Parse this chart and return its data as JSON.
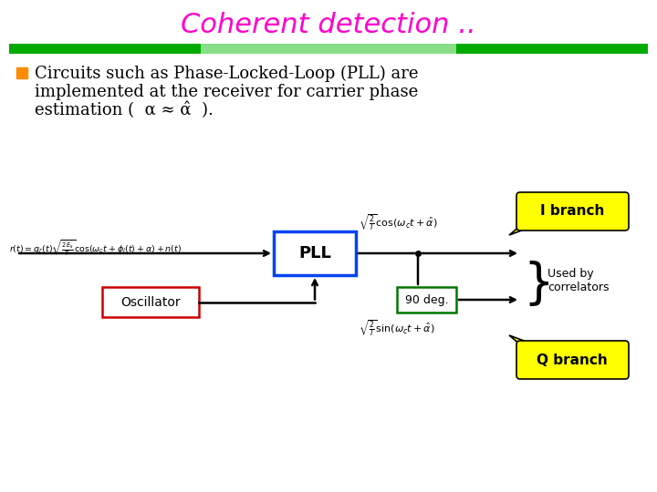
{
  "title": "Coherent detection ..",
  "title_color": "#FF00CC",
  "title_fontsize": 22,
  "bg_color": "#FFFFFF",
  "bullet_color": "#FF8C00",
  "bullet_text_line1": "Circuits such as Phase-Locked-Loop (PLL) are",
  "bullet_text_line2": "implemented at the receiver for carrier phase",
  "bullet_text_line3": "estimation (  α ≈ α̂  ).",
  "pll_box_color": "#0044EE",
  "oscillator_box_color": "#CC0000",
  "deg90_box_color": "#007700",
  "i_branch_bg": "#FFFF00",
  "q_branch_bg": "#FFFF00",
  "i_branch_text": "I branch",
  "q_branch_text": "Q branch",
  "used_by_text": "Used by\ncorrelators",
  "pll_label": "PLL",
  "oscillator_label": "Oscillator",
  "deg90_label": "90 deg.",
  "bar_green_dark": "#00AA00",
  "bar_green_light": "#88DD88"
}
